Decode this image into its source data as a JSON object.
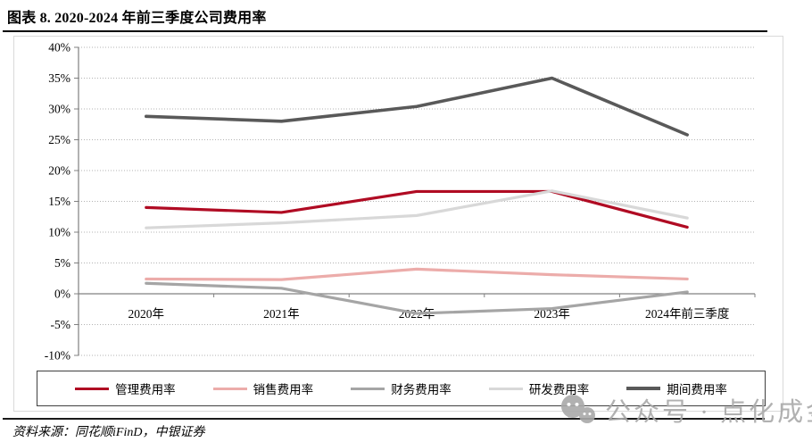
{
  "header": {
    "title": "图表 8. 2020-2024 年前三季度公司费用率"
  },
  "chart_data": {
    "type": "line",
    "title": "2020-2024 年前三季度公司费用率",
    "categories": [
      "2020年",
      "2021年",
      "2022年",
      "2023年",
      "2024年前三季度"
    ],
    "series": [
      {
        "id": "admin",
        "name": "管理费用率",
        "color": "#B00B23",
        "values": [
          14.0,
          13.2,
          16.6,
          16.6,
          10.8
        ]
      },
      {
        "id": "selling",
        "name": "销售费用率",
        "color": "#ECACAA",
        "values": [
          2.4,
          2.3,
          4.0,
          3.1,
          2.4
        ]
      },
      {
        "id": "finance",
        "name": "财务费用率",
        "color": "#A5A5A5",
        "values": [
          1.7,
          0.9,
          -3.2,
          -2.4,
          0.3
        ]
      },
      {
        "id": "rnd",
        "name": "研发费用率",
        "color": "#D8D8D8",
        "values": [
          10.7,
          11.5,
          12.7,
          16.7,
          12.3
        ]
      },
      {
        "id": "period",
        "name": "期间费用率",
        "color": "#595959",
        "values": [
          28.8,
          28.0,
          30.4,
          35.0,
          25.8
        ]
      }
    ],
    "ylim": [
      -10,
      40
    ],
    "y_tick_step": 5,
    "y_tick_labels": [
      "40%",
      "35%",
      "30%",
      "25%",
      "20%",
      "15%",
      "10%",
      "5%",
      "0%",
      "-5%",
      "-10%"
    ],
    "grid": "horizontal-dotted",
    "legend_position": "bottom",
    "axis_color": "#808080",
    "grid_color": "#b3b3b3"
  },
  "footer": {
    "source": "资料来源：同花顺iFinD，中银证券"
  },
  "watermark": {
    "text": "公众号 · 点化成金",
    "icon": "wechat-icon"
  }
}
